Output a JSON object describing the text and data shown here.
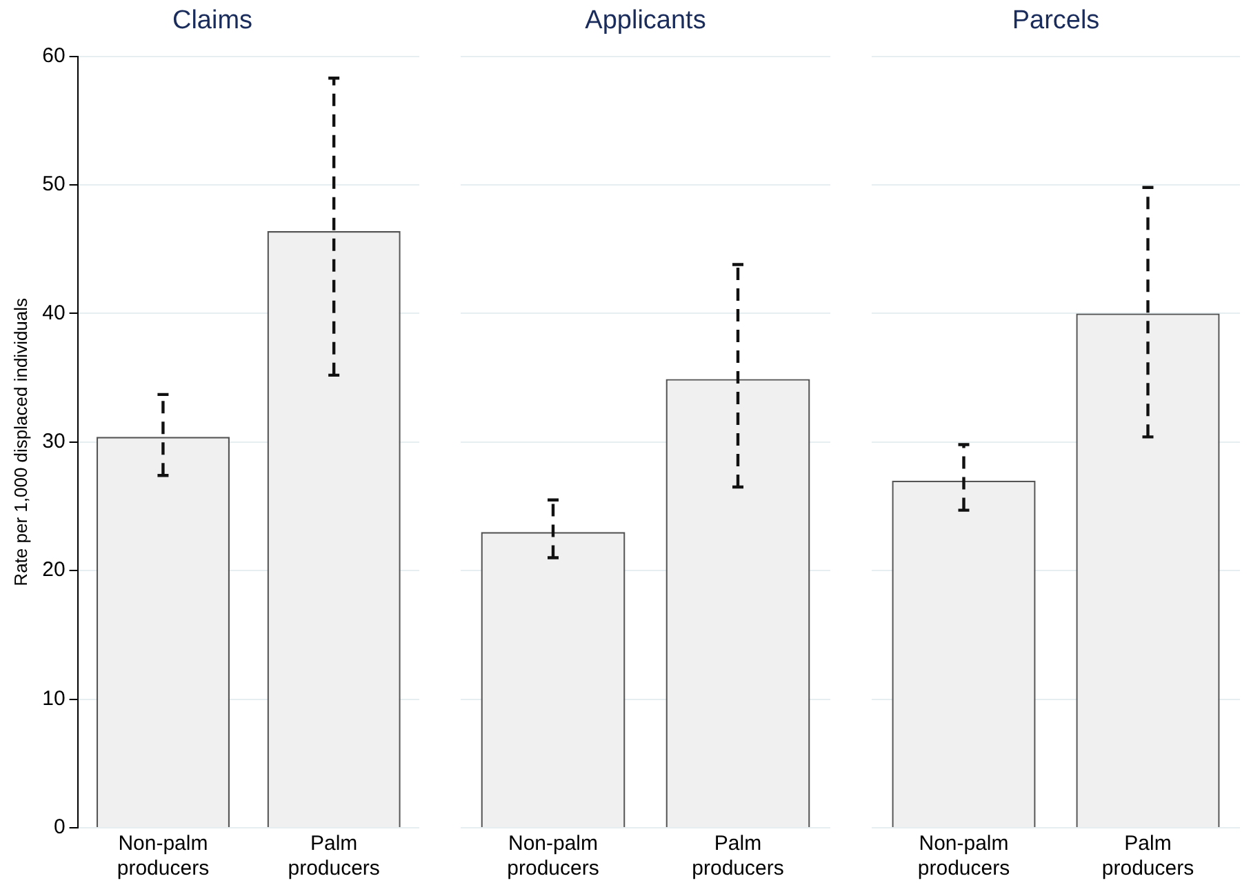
{
  "chart_data": [
    {
      "type": "bar",
      "title": "Claims",
      "ylabel": "Rate per 1,000 displaced individuals",
      "categories": [
        "Non-palm producers",
        "Palm producers"
      ],
      "values": [
        30.4,
        46.4
      ],
      "errors": [
        [
          27.4,
          33.7
        ],
        [
          35.2,
          58.3
        ]
      ],
      "color": "#f0f0f0",
      "ylim": [
        0,
        60
      ],
      "yticks": [
        0,
        10,
        20,
        30,
        40,
        50,
        60
      ],
      "grid": "y",
      "legend": false
    },
    {
      "type": "bar",
      "title": "Applicants",
      "categories": [
        "Non-palm producers",
        "Palm producers"
      ],
      "values": [
        23.0,
        34.9
      ],
      "errors": [
        [
          21.0,
          25.5
        ],
        [
          26.5,
          43.8
        ]
      ],
      "color": "#f0f0f0",
      "ylim": [
        0,
        60
      ],
      "yticks": [
        0,
        10,
        20,
        30,
        40,
        50,
        60
      ],
      "grid": "y",
      "legend": false,
      "tick_labels": "x"
    },
    {
      "type": "bar",
      "title": "Parcels",
      "categories": [
        "Non-palm producers",
        "Palm producers"
      ],
      "values": [
        27.0,
        40.0
      ],
      "errors": [
        [
          24.7,
          29.8
        ],
        [
          30.4,
          49.8
        ]
      ],
      "color": "#f0f0f0",
      "ylim": [
        0,
        60
      ],
      "yticks": [
        0,
        10,
        20,
        30,
        40,
        50,
        60
      ],
      "grid": "y",
      "legend": false,
      "tick_labels": "x"
    }
  ]
}
